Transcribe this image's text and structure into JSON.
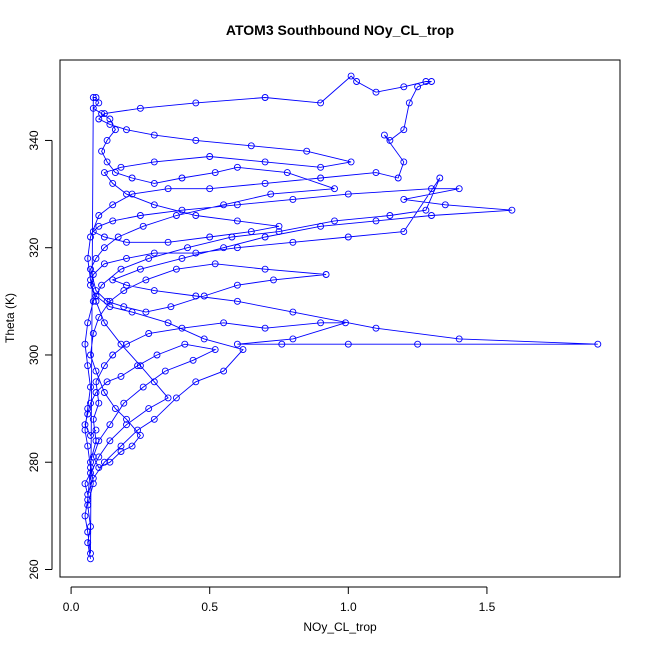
{
  "chart_data": {
    "type": "scatter",
    "title": "ATOM3 Southbound NOy_CL_trop",
    "xlabel": "NOy_CL_trop",
    "ylabel": "Theta (K)",
    "xlim": [
      -0.04,
      1.98
    ],
    "ylim": [
      258.6,
      355.0
    ],
    "xticks": [
      0.0,
      0.5,
      1.0,
      1.5
    ],
    "xtick_labels": [
      "0.0",
      "0.5",
      "1.0",
      "1.5"
    ],
    "yticks": [
      260,
      280,
      300,
      320,
      340
    ],
    "ytick_labels": [
      "260",
      "280",
      "300",
      "320",
      "340"
    ],
    "grid": false,
    "legend": "none",
    "color": "#0000ff",
    "marker": "open-circle",
    "connected": true,
    "series": [
      {
        "points": [
          [
            0.07,
            262
          ],
          [
            0.06,
            265
          ],
          [
            0.07,
            268
          ],
          [
            0.06,
            272
          ],
          [
            0.08,
            276
          ],
          [
            0.07,
            280
          ],
          [
            0.09,
            284
          ],
          [
            0.08,
            288
          ],
          [
            0.1,
            291
          ],
          [
            0.09,
            295
          ],
          [
            0.12,
            298
          ],
          [
            0.15,
            300
          ],
          [
            0.2,
            302
          ],
          [
            0.28,
            304
          ],
          [
            0.4,
            305
          ],
          [
            0.55,
            306
          ],
          [
            0.7,
            305
          ],
          [
            0.9,
            306
          ],
          [
            0.99,
            306
          ],
          [
            0.8,
            303
          ],
          [
            0.6,
            302
          ],
          [
            0.76,
            302
          ],
          [
            1.0,
            302
          ],
          [
            1.25,
            302
          ],
          [
            1.9,
            302
          ],
          [
            1.4,
            303
          ],
          [
            1.1,
            305
          ],
          [
            0.8,
            308
          ],
          [
            0.6,
            310
          ],
          [
            0.45,
            311
          ],
          [
            0.3,
            312
          ],
          [
            0.2,
            313
          ],
          [
            0.15,
            314
          ],
          [
            0.25,
            316
          ],
          [
            0.4,
            318
          ],
          [
            0.55,
            320
          ],
          [
            0.7,
            322
          ],
          [
            0.9,
            324
          ],
          [
            1.1,
            325
          ],
          [
            1.3,
            326
          ],
          [
            1.59,
            327
          ],
          [
            1.35,
            328
          ],
          [
            1.2,
            329
          ],
          [
            1.4,
            331
          ],
          [
            1.3,
            331
          ],
          [
            1.0,
            330
          ],
          [
            0.8,
            329
          ],
          [
            0.6,
            328
          ],
          [
            0.4,
            327
          ],
          [
            0.25,
            326
          ],
          [
            0.15,
            325
          ],
          [
            0.1,
            324
          ],
          [
            0.08,
            323
          ],
          [
            0.12,
            322
          ],
          [
            0.2,
            321
          ],
          [
            0.35,
            321
          ],
          [
            0.5,
            322
          ],
          [
            0.65,
            323
          ],
          [
            0.75,
            324
          ],
          [
            0.6,
            325
          ],
          [
            0.45,
            326
          ],
          [
            0.3,
            328
          ],
          [
            0.2,
            330
          ],
          [
            0.15,
            332
          ],
          [
            0.12,
            334
          ],
          [
            0.18,
            335
          ],
          [
            0.3,
            336
          ],
          [
            0.5,
            337
          ],
          [
            0.7,
            336
          ],
          [
            0.9,
            335
          ],
          [
            1.01,
            336
          ],
          [
            0.85,
            338
          ],
          [
            0.65,
            339
          ],
          [
            0.45,
            340
          ],
          [
            0.3,
            341
          ],
          [
            0.2,
            342
          ],
          [
            0.14,
            343
          ],
          [
            0.1,
            344
          ],
          [
            0.12,
            345
          ],
          [
            0.25,
            346
          ],
          [
            0.45,
            347
          ],
          [
            0.7,
            348
          ],
          [
            0.9,
            347
          ],
          [
            1.01,
            352
          ],
          [
            1.03,
            351
          ],
          [
            1.1,
            349
          ],
          [
            1.2,
            350
          ],
          [
            1.28,
            351
          ],
          [
            1.3,
            351
          ],
          [
            1.25,
            350
          ],
          [
            1.22,
            347
          ],
          [
            1.2,
            342
          ],
          [
            1.15,
            340
          ],
          [
            1.13,
            341
          ],
          [
            1.2,
            336
          ],
          [
            1.18,
            333
          ],
          [
            1.1,
            334
          ],
          [
            0.9,
            333
          ],
          [
            0.7,
            332
          ],
          [
            0.5,
            331
          ],
          [
            0.35,
            331
          ],
          [
            0.22,
            330
          ],
          [
            0.15,
            328
          ],
          [
            0.1,
            326
          ],
          [
            0.07,
            322
          ],
          [
            0.06,
            318
          ],
          [
            0.07,
            314
          ],
          [
            0.09,
            310
          ],
          [
            0.12,
            306
          ],
          [
            0.18,
            302
          ],
          [
            0.25,
            298
          ],
          [
            0.3,
            295
          ],
          [
            0.35,
            292
          ],
          [
            0.28,
            290
          ],
          [
            0.2,
            287
          ],
          [
            0.14,
            284
          ],
          [
            0.1,
            281
          ],
          [
            0.07,
            278
          ],
          [
            0.05,
            276
          ],
          [
            0.06,
            274
          ],
          [
            0.08,
            277
          ],
          [
            0.12,
            280
          ],
          [
            0.18,
            283
          ],
          [
            0.24,
            286
          ],
          [
            0.3,
            288
          ],
          [
            0.38,
            292
          ],
          [
            0.45,
            295
          ],
          [
            0.55,
            297
          ],
          [
            0.62,
            301
          ],
          [
            0.48,
            303
          ],
          [
            0.35,
            306
          ],
          [
            0.22,
            308
          ],
          [
            0.14,
            309
          ],
          [
            0.09,
            311
          ],
          [
            0.07,
            313
          ],
          [
            0.08,
            315
          ],
          [
            0.12,
            317
          ],
          [
            0.2,
            318
          ],
          [
            0.3,
            319
          ],
          [
            0.45,
            319
          ],
          [
            0.6,
            320
          ],
          [
            0.8,
            321
          ],
          [
            1.0,
            322
          ],
          [
            1.2,
            323
          ],
          [
            1.33,
            333
          ],
          [
            1.28,
            327
          ],
          [
            1.15,
            326
          ],
          [
            0.95,
            325
          ],
          [
            0.75,
            323
          ],
          [
            0.58,
            322
          ],
          [
            0.42,
            320
          ],
          [
            0.28,
            318
          ],
          [
            0.18,
            316
          ],
          [
            0.11,
            313
          ],
          [
            0.08,
            310
          ],
          [
            0.06,
            306
          ],
          [
            0.05,
            302
          ],
          [
            0.06,
            298
          ],
          [
            0.07,
            294
          ],
          [
            0.06,
            290
          ],
          [
            0.05,
            286
          ],
          [
            0.06,
            283
          ],
          [
            0.07,
            279
          ],
          [
            0.06,
            273
          ],
          [
            0.05,
            270
          ],
          [
            0.06,
            267
          ],
          [
            0.07,
            263
          ],
          [
            0.08,
            348
          ],
          [
            0.09,
            348
          ],
          [
            0.1,
            347
          ],
          [
            0.08,
            346
          ],
          [
            0.11,
            345
          ],
          [
            0.14,
            344
          ],
          [
            0.16,
            342
          ],
          [
            0.13,
            340
          ],
          [
            0.11,
            338
          ],
          [
            0.13,
            336
          ],
          [
            0.16,
            334
          ],
          [
            0.22,
            333
          ],
          [
            0.3,
            332
          ],
          [
            0.4,
            333
          ],
          [
            0.52,
            334
          ],
          [
            0.6,
            335
          ],
          [
            0.78,
            334
          ],
          [
            0.95,
            331
          ],
          [
            0.72,
            330
          ],
          [
            0.55,
            328
          ],
          [
            0.38,
            326
          ],
          [
            0.26,
            324
          ],
          [
            0.17,
            322
          ],
          [
            0.12,
            320
          ],
          [
            0.09,
            318
          ],
          [
            0.07,
            316
          ],
          [
            0.09,
            312
          ],
          [
            0.13,
            310
          ],
          [
            0.19,
            309
          ],
          [
            0.27,
            308
          ],
          [
            0.36,
            309
          ],
          [
            0.48,
            311
          ],
          [
            0.6,
            313
          ],
          [
            0.73,
            314
          ],
          [
            0.92,
            315
          ],
          [
            0.7,
            316
          ],
          [
            0.52,
            317
          ],
          [
            0.38,
            316
          ],
          [
            0.27,
            314
          ],
          [
            0.19,
            312
          ],
          [
            0.14,
            310
          ],
          [
            0.1,
            307
          ],
          [
            0.08,
            304
          ],
          [
            0.07,
            300
          ],
          [
            0.09,
            297
          ],
          [
            0.12,
            293
          ],
          [
            0.16,
            290
          ],
          [
            0.2,
            288
          ],
          [
            0.25,
            285
          ],
          [
            0.22,
            283
          ],
          [
            0.18,
            282
          ],
          [
            0.14,
            280
          ],
          [
            0.1,
            279
          ],
          [
            0.08,
            281
          ],
          [
            0.1,
            284
          ],
          [
            0.14,
            287
          ],
          [
            0.19,
            291
          ],
          [
            0.26,
            294
          ],
          [
            0.34,
            297
          ],
          [
            0.44,
            299
          ],
          [
            0.52,
            301
          ],
          [
            0.41,
            302
          ],
          [
            0.31,
            300
          ],
          [
            0.24,
            298
          ],
          [
            0.18,
            296
          ],
          [
            0.13,
            295
          ],
          [
            0.09,
            293
          ],
          [
            0.07,
            291
          ],
          [
            0.06,
            289
          ],
          [
            0.05,
            287
          ],
          [
            0.07,
            285
          ],
          [
            0.09,
            286
          ]
        ]
      }
    ]
  }
}
